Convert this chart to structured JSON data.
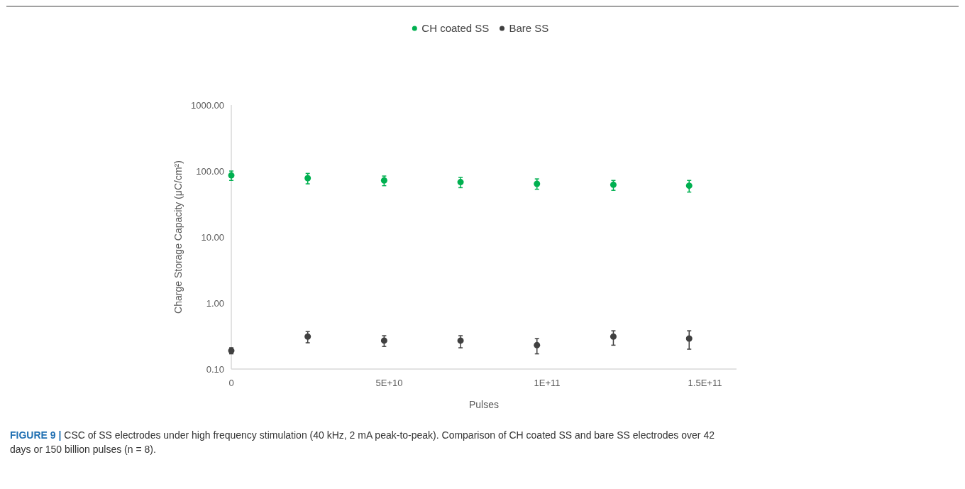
{
  "chart_data": {
    "type": "scatter",
    "xlabel": "Pulses",
    "ylabel": "Charge Storage Capacity (μC/cm²)",
    "x": [
      0,
      24200000000,
      48400000000,
      72600000000,
      96800000000,
      121000000000,
      145000000000
    ],
    "series": [
      {
        "name": "CH coated SS",
        "color": "#00b050",
        "values": [
          86,
          78,
          72,
          68,
          64,
          62,
          60
        ],
        "errors": [
          [
            72,
            100
          ],
          [
            64,
            92
          ],
          [
            60,
            84
          ],
          [
            56,
            80
          ],
          [
            53,
            76
          ],
          [
            51,
            72
          ],
          [
            48,
            72
          ]
        ]
      },
      {
        "name": "Bare SS",
        "color": "#404040",
        "values": [
          0.19,
          0.31,
          0.27,
          0.27,
          0.23,
          0.31,
          0.29
        ],
        "errors": [
          [
            0.17,
            0.21
          ],
          [
            0.25,
            0.37
          ],
          [
            0.22,
            0.32
          ],
          [
            0.21,
            0.32
          ],
          [
            0.17,
            0.29
          ],
          [
            0.23,
            0.38
          ],
          [
            0.2,
            0.38
          ]
        ]
      }
    ],
    "log": "y",
    "ylim": [
      0.1,
      1000
    ],
    "yticks": [
      {
        "value": 0.1,
        "label": "0.10"
      },
      {
        "value": 1,
        "label": "1.00"
      },
      {
        "value": 10,
        "label": "10.00"
      },
      {
        "value": 100,
        "label": "100.00"
      },
      {
        "value": 1000,
        "label": "1000.00"
      }
    ],
    "xlim": [
      0,
      160000000000
    ],
    "xticks": [
      0,
      {
        "value": 50000000000,
        "label": "5E+10"
      },
      {
        "value": 100000000000,
        "label": "1E+11"
      },
      {
        "value": 150000000000,
        "label": "1.5E+11"
      }
    ],
    "marker": "circle",
    "legend": "top",
    "grid": false,
    "annotations": [
      "FIGURE 9 | CSC of SS electrodes under high frequency stimulation (40 kHz, 2 mA peak-to-peak). Comparison of CH coated SS and bare SS electrodes over 42 days or 150 billion pulses (n = 8)."
    ]
  }
}
